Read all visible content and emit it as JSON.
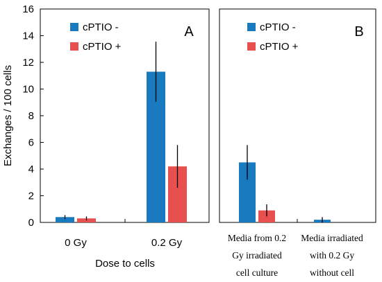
{
  "colors": {
    "series1": "#1a7abf",
    "series2": "#e8504f",
    "axis": "#000000"
  },
  "chart_data": [
    {
      "type": "bar",
      "panel_label": "A",
      "ylabel": "Exchanges / 100 cells",
      "xlabel": "Dose to cells",
      "ylim": [
        0,
        16
      ],
      "yticks": [
        0,
        2,
        4,
        6,
        8,
        10,
        12,
        14,
        16
      ],
      "categories": [
        "0 Gy",
        "0.2 Gy"
      ],
      "series": [
        {
          "name": "cPTIO -",
          "values": [
            0.4,
            11.3
          ],
          "errors": [
            0.15,
            2.25
          ]
        },
        {
          "name": "cPTIO +",
          "values": [
            0.3,
            4.2
          ],
          "errors": [
            0.15,
            1.6
          ]
        }
      ],
      "legend": "top-left"
    },
    {
      "type": "bar",
      "panel_label": "B",
      "categories": [
        [
          "Media from 0.2",
          "Gy irradiated",
          "cell culture"
        ],
        [
          "Media irradiated",
          "with 0.2 Gy",
          "without cell"
        ]
      ],
      "series": [
        {
          "name": "cPTIO -",
          "values": [
            4.5,
            0.2
          ],
          "errors": [
            1.3,
            0.2
          ]
        },
        {
          "name": "cPTIO +",
          "values": [
            0.9,
            0.0
          ],
          "errors": [
            0.45,
            0.0
          ]
        }
      ],
      "legend": "top-left"
    }
  ]
}
